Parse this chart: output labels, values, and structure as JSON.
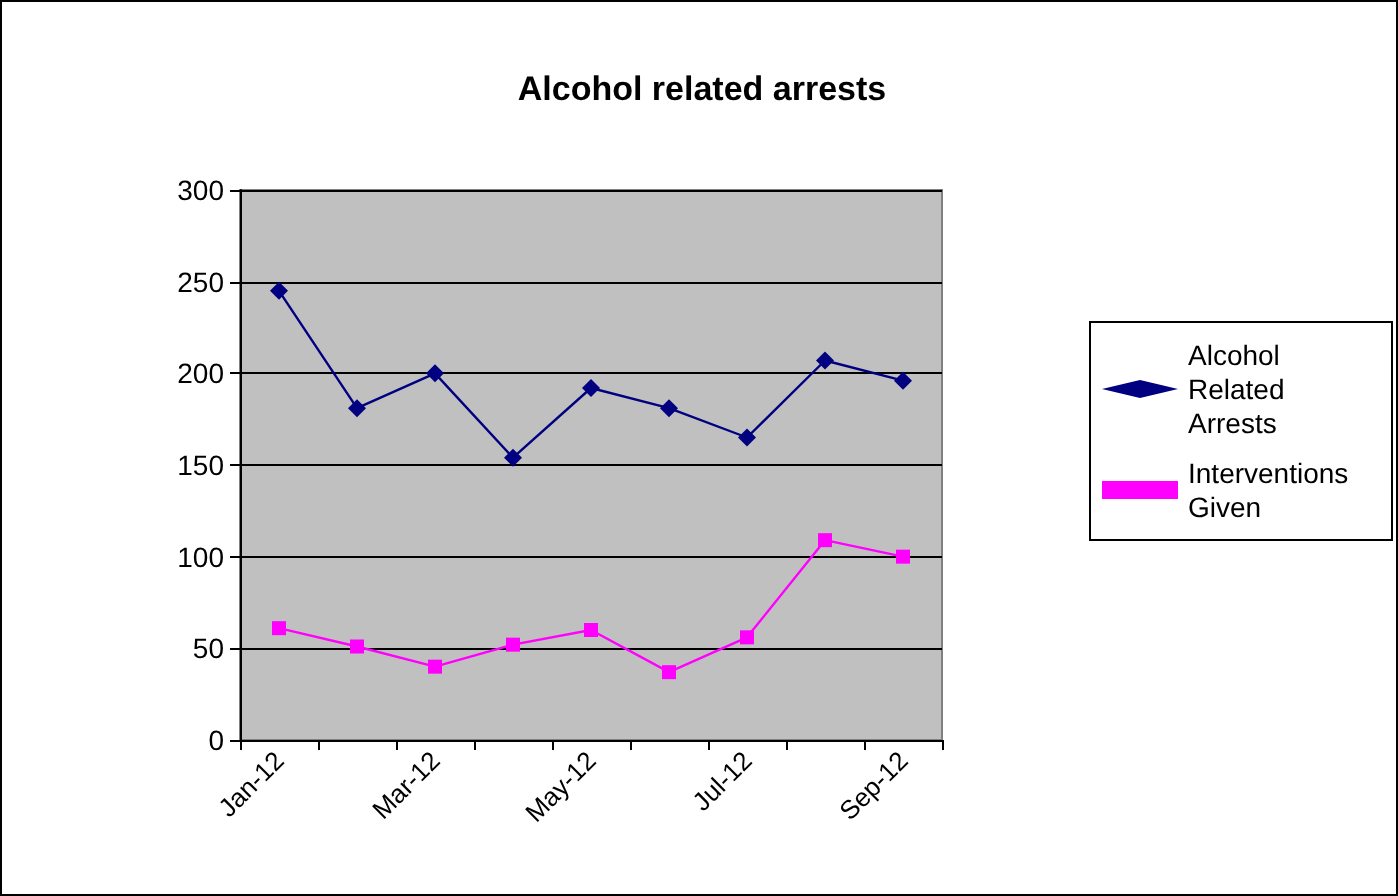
{
  "chart_data": {
    "type": "line",
    "title": "Alcohol related arrests",
    "categories": [
      "Jan-12",
      null,
      "Mar-12",
      null,
      "May-12",
      null,
      "Jul-12",
      null,
      "Sep-12"
    ],
    "series": [
      {
        "name": "Alcohol Related Arrests",
        "color": "#000080",
        "marker": "diamond",
        "values": [
          245,
          181,
          200,
          154,
          192,
          181,
          165,
          207,
          196
        ]
      },
      {
        "name": "Interventions Given",
        "color": "#ff00ff",
        "marker": "square",
        "values": [
          61,
          51,
          40,
          52,
          60,
          37,
          56,
          109,
          100
        ]
      }
    ],
    "ylim": [
      0,
      300
    ],
    "yticks": [
      0,
      50,
      100,
      150,
      200,
      250,
      300
    ],
    "grid": "y",
    "legend": "right"
  }
}
